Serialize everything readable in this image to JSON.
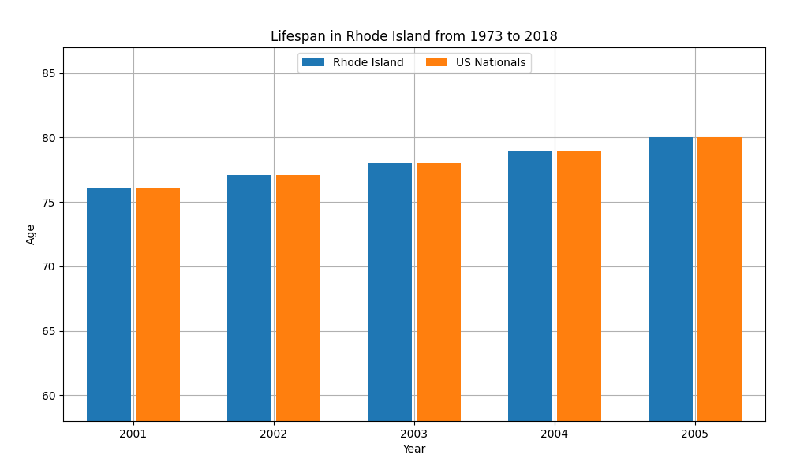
{
  "chart_data": {
    "type": "bar",
    "title": "Lifespan in Rhode Island from 1973 to 2018",
    "x_label": "Year",
    "y_label": "Age",
    "categories": [
      "2001",
      "2002",
      "2003",
      "2004",
      "2005"
    ],
    "series": [
      {
        "name": "Rhode Island",
        "values": [
          76.1,
          77.1,
          78.0,
          79.0,
          80.0
        ]
      },
      {
        "name": "US Nationals",
        "values": [
          76.1,
          77.1,
          78.0,
          79.0,
          80.0
        ]
      }
    ],
    "ylim": [
      58,
      87
    ],
    "yticks": [
      60,
      65,
      70,
      75,
      80,
      85
    ],
    "grid": true,
    "legend": "upper center"
  }
}
